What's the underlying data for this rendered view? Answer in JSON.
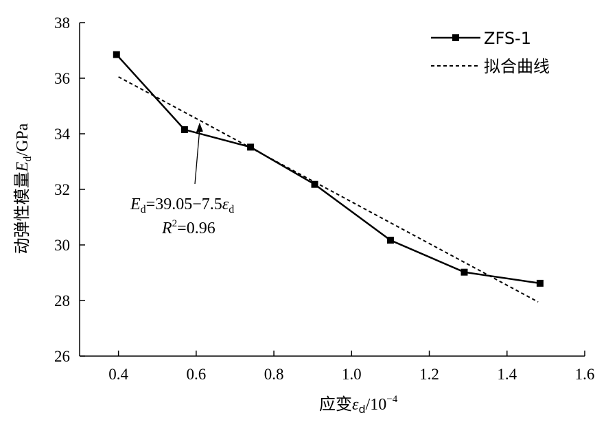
{
  "chart_data": {
    "type": "line",
    "x": [
      0.395,
      0.57,
      0.74,
      0.905,
      1.1,
      1.29,
      1.485
    ],
    "series": [
      {
        "name": "ZFS-1",
        "style": "solid-square-markers",
        "color": "#000000",
        "values": [
          36.85,
          34.15,
          33.52,
          32.18,
          30.17,
          29.02,
          28.62
        ]
      },
      {
        "name": "拟合曲线",
        "style": "dashed",
        "color": "#000000",
        "x_range": [
          0.4,
          1.48
        ],
        "slope": -7.5,
        "intercept": 39.05
      }
    ],
    "xlim": [
      0.3,
      1.6
    ],
    "ylim": [
      26,
      38
    ],
    "xticks": [
      "0.4",
      "0.6",
      "0.8",
      "1.0",
      "1.2",
      "1.4",
      "1.6"
    ],
    "yticks": [
      "26",
      "28",
      "30",
      "32",
      "34",
      "36",
      "38"
    ],
    "xlabel": {
      "main": "应变",
      "sym": "ε",
      "sub": "d",
      "unit": "/10",
      "exp": "−4"
    },
    "ylabel": {
      "main": "动弹性模量",
      "sym": "E",
      "sub": "d",
      "unit": "/GPa"
    },
    "legend_position": "top-right",
    "annotation": {
      "eq_sym": "E",
      "eq_sub": "d",
      "eq_body": "=39.05−7.5",
      "eq_var": "ε",
      "eq_var_sub": "d",
      "r2_sym": "R",
      "r2_exp": "2",
      "r2_body": "=0.96",
      "points_to_x": 0.6
    },
    "grid": false
  }
}
